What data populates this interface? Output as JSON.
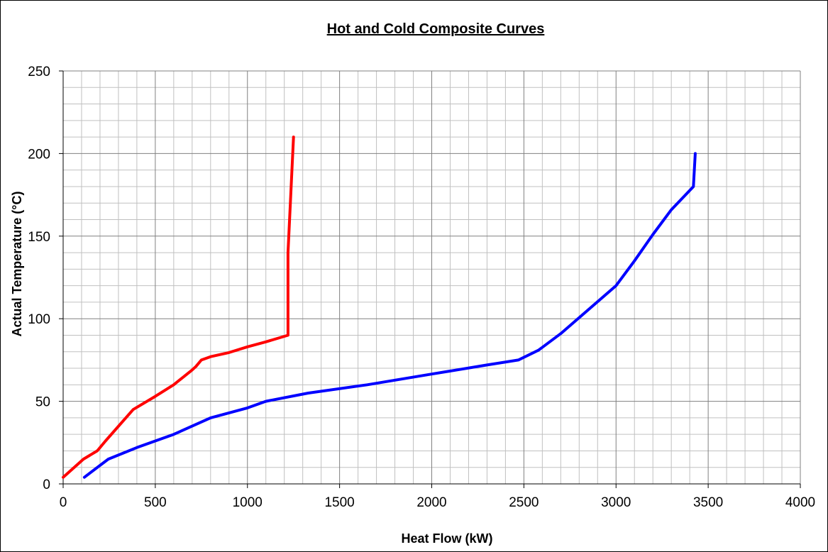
{
  "chart_data": {
    "type": "line",
    "title": "Hot and Cold Composite Curves",
    "xlabel": "Heat Flow (kW)",
    "ylabel": "Actual Temperature (°C)",
    "xlim": [
      0,
      4000
    ],
    "ylim": [
      0,
      250
    ],
    "x_ticks": [
      "0",
      "500",
      "1000",
      "1500",
      "2000",
      "2500",
      "3000",
      "3500",
      "4000"
    ],
    "y_ticks": [
      "0",
      "50",
      "100",
      "150",
      "200",
      "250"
    ],
    "grid": true,
    "minor_grid": true,
    "legend": "none",
    "series": [
      {
        "color": "#ff0000",
        "points": [
          [
            0,
            4
          ],
          [
            110,
            15
          ],
          [
            185,
            20
          ],
          [
            230,
            26
          ],
          [
            380,
            45
          ],
          [
            500,
            53
          ],
          [
            600,
            60
          ],
          [
            700,
            69
          ],
          [
            720,
            71
          ],
          [
            750,
            75
          ],
          [
            800,
            77
          ],
          [
            900,
            79.5
          ],
          [
            1000,
            83
          ],
          [
            1100,
            86
          ],
          [
            1220,
            90
          ],
          [
            1220,
            140
          ],
          [
            1250,
            210
          ]
        ]
      },
      {
        "color": "#0000ff",
        "points": [
          [
            115,
            4
          ],
          [
            245,
            15
          ],
          [
            400,
            22
          ],
          [
            600,
            30
          ],
          [
            800,
            40
          ],
          [
            1000,
            46
          ],
          [
            1100,
            50
          ],
          [
            1330,
            55
          ],
          [
            1650,
            60
          ],
          [
            2000,
            66.5
          ],
          [
            2300,
            72
          ],
          [
            2470,
            75
          ],
          [
            2580,
            81
          ],
          [
            2700,
            91
          ],
          [
            3000,
            120
          ],
          [
            3100,
            135
          ],
          [
            3200,
            151
          ],
          [
            3300,
            166
          ],
          [
            3420,
            180
          ],
          [
            3430,
            200
          ]
        ]
      }
    ]
  }
}
